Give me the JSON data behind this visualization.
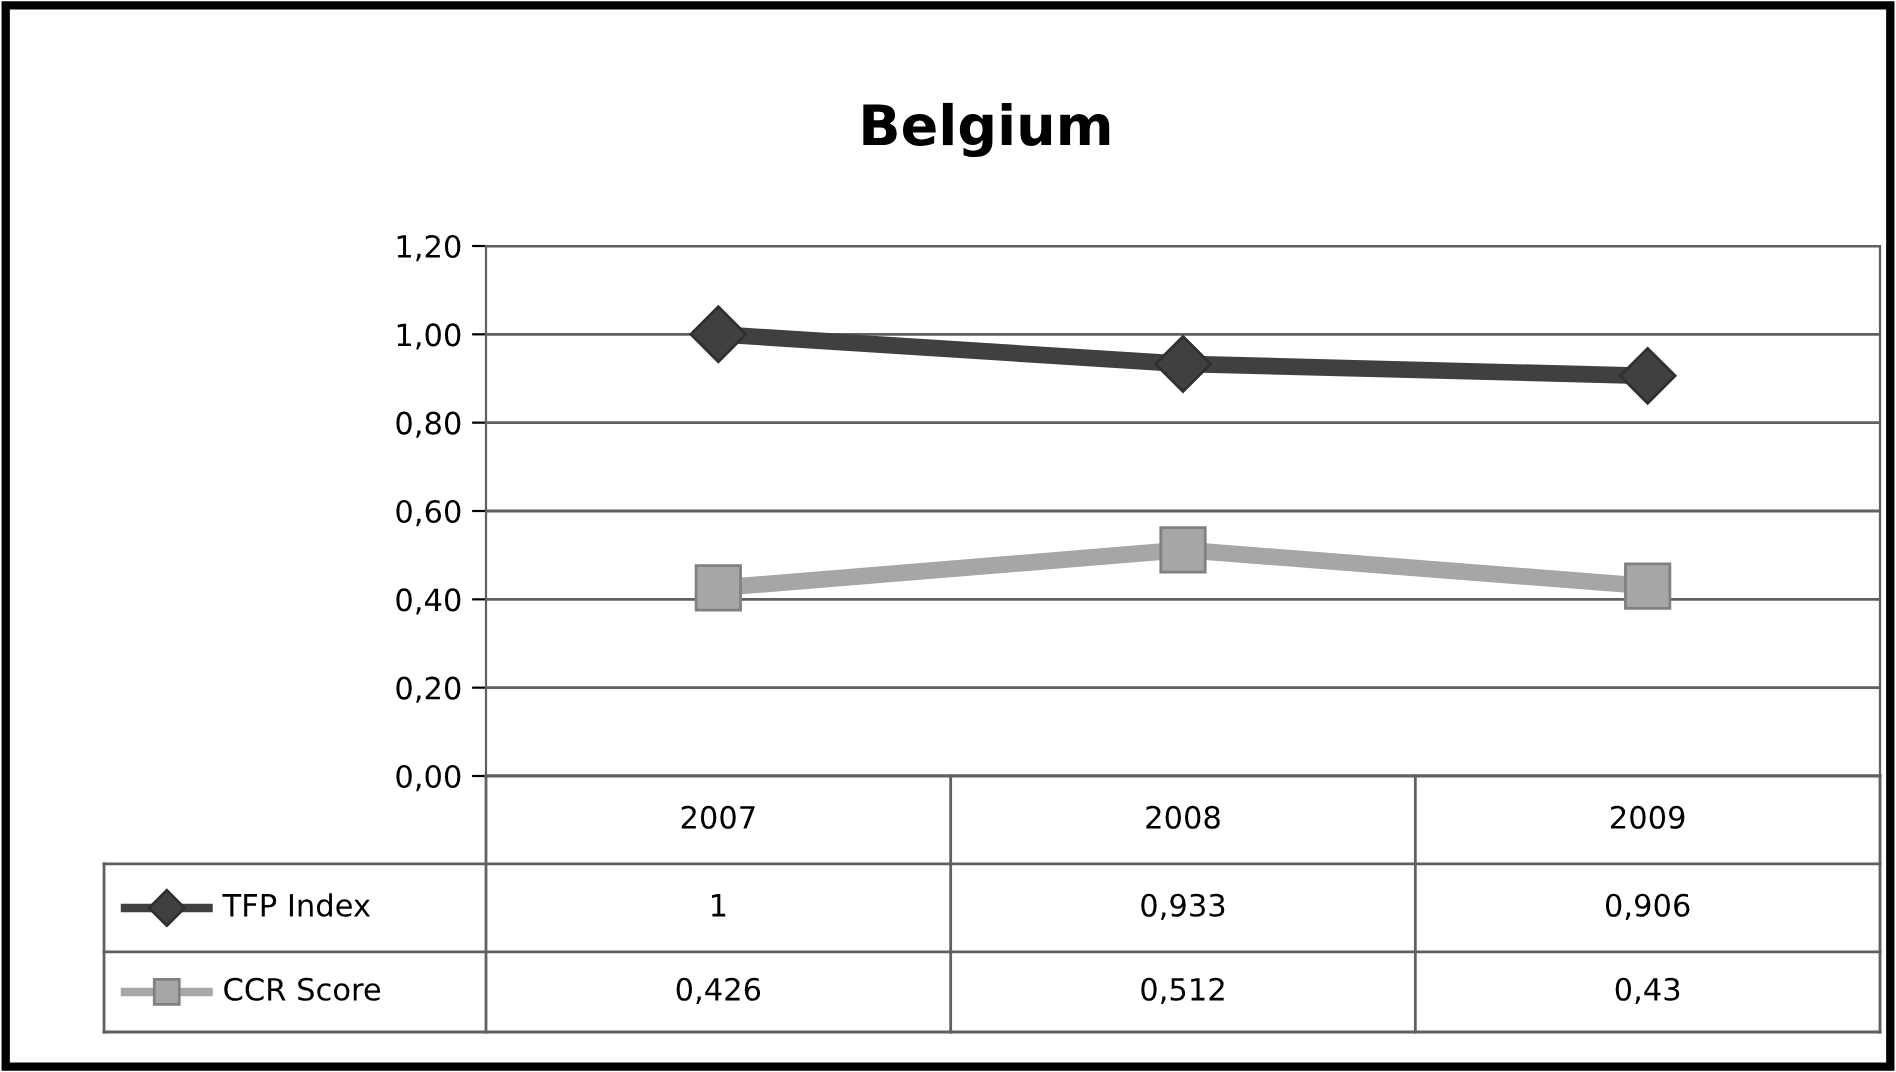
{
  "chart_data": {
    "type": "line",
    "title": "Belgium",
    "categories": [
      "2007",
      "2008",
      "2009"
    ],
    "series": [
      {
        "name": "TFP Index",
        "color": "#404040",
        "marker": "diamond",
        "values": [
          1,
          0.933,
          0.906
        ],
        "value_labels": [
          "1",
          "0,933",
          "0,906"
        ]
      },
      {
        "name": "CCR Score",
        "color": "#a6a6a6",
        "marker": "square",
        "values": [
          0.426,
          0.512,
          0.43
        ],
        "value_labels": [
          "0,426",
          "0,512",
          "0,43"
        ]
      }
    ],
    "ylim": [
      0,
      1.2
    ],
    "yticks": [
      {
        "value": 0,
        "label": "0,00"
      },
      {
        "value": 0.2,
        "label": "0,20"
      },
      {
        "value": 0.4,
        "label": "0,40"
      },
      {
        "value": 0.6,
        "label": "0,60"
      },
      {
        "value": 0.8,
        "label": "0,80"
      },
      {
        "value": 1,
        "label": "1,00"
      },
      {
        "value": 1.2,
        "label": "1,20"
      }
    ],
    "grid": "y",
    "legend": "bottom",
    "line_style": "solid"
  }
}
